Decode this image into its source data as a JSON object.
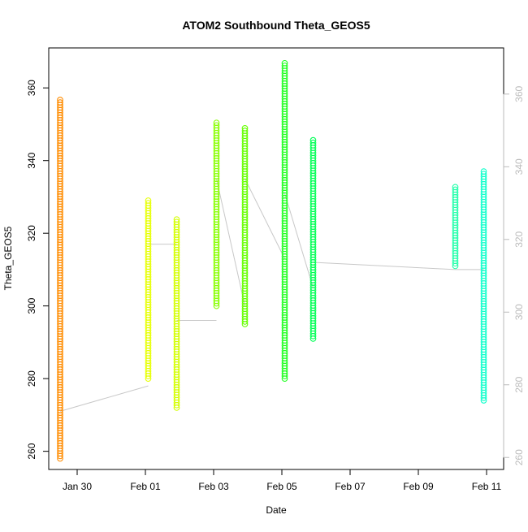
{
  "chart_data": {
    "type": "scatter",
    "title": "ATOM2 Southbound Theta_GEOS5",
    "xlabel": "Date",
    "ylabel": "Theta_GEOS5",
    "x_ticks": [
      "Jan 30",
      "Feb 01",
      "Feb 03",
      "Feb 05",
      "Feb 07",
      "Feb 09",
      "Feb 11"
    ],
    "y_ticks_left": [
      "260",
      "280",
      "300",
      "320",
      "340",
      "360"
    ],
    "y_ticks_right": [
      "260",
      "280",
      "300",
      "320",
      "340",
      "360"
    ],
    "xlim": [
      "2017-01-29 04:00",
      "2017-02-11 12:00"
    ],
    "ylim": [
      255,
      371
    ],
    "grid": false,
    "legend": "none",
    "connector_color": "#c8c8c8",
    "segments": [
      {
        "x": "2017-01-29 12:00",
        "y_min": 258,
        "y_max": 357,
        "start": 271,
        "end": 271,
        "color": "#ff8c00"
      },
      {
        "x": "2017-02-01 02:00",
        "y_min": 280,
        "y_max": 329,
        "start": 278,
        "end": 317,
        "color": "#e6ff00"
      },
      {
        "x": "2017-02-01 22:00",
        "y_min": 272,
        "y_max": 324,
        "start": 317,
        "end": 296,
        "color": "#d4ff00"
      },
      {
        "x": "2017-02-03 02:00",
        "y_min": 300,
        "y_max": 351,
        "start": 296,
        "end": 335,
        "color": "#88ff00"
      },
      {
        "x": "2017-02-03 22:00",
        "y_min": 295,
        "y_max": 349,
        "start": 300,
        "end": 335,
        "color": "#66ff00"
      },
      {
        "x": "2017-02-05 02:00",
        "y_min": 280,
        "y_max": 367,
        "start": 313,
        "end": 331,
        "color": "#22ff22"
      },
      {
        "x": "2017-02-05 22:00",
        "y_min": 291,
        "y_max": 346,
        "start": 305,
        "end": 312,
        "color": "#00ff55"
      },
      {
        "x": "2017-02-10 02:00",
        "y_min": 311,
        "y_max": 333,
        "start": 310,
        "end": 310,
        "color": "#22ffaa"
      },
      {
        "x": "2017-02-10 22:00",
        "y_min": 274,
        "y_max": 337,
        "start": 310,
        "end": 305,
        "color": "#11ffcc"
      }
    ]
  }
}
